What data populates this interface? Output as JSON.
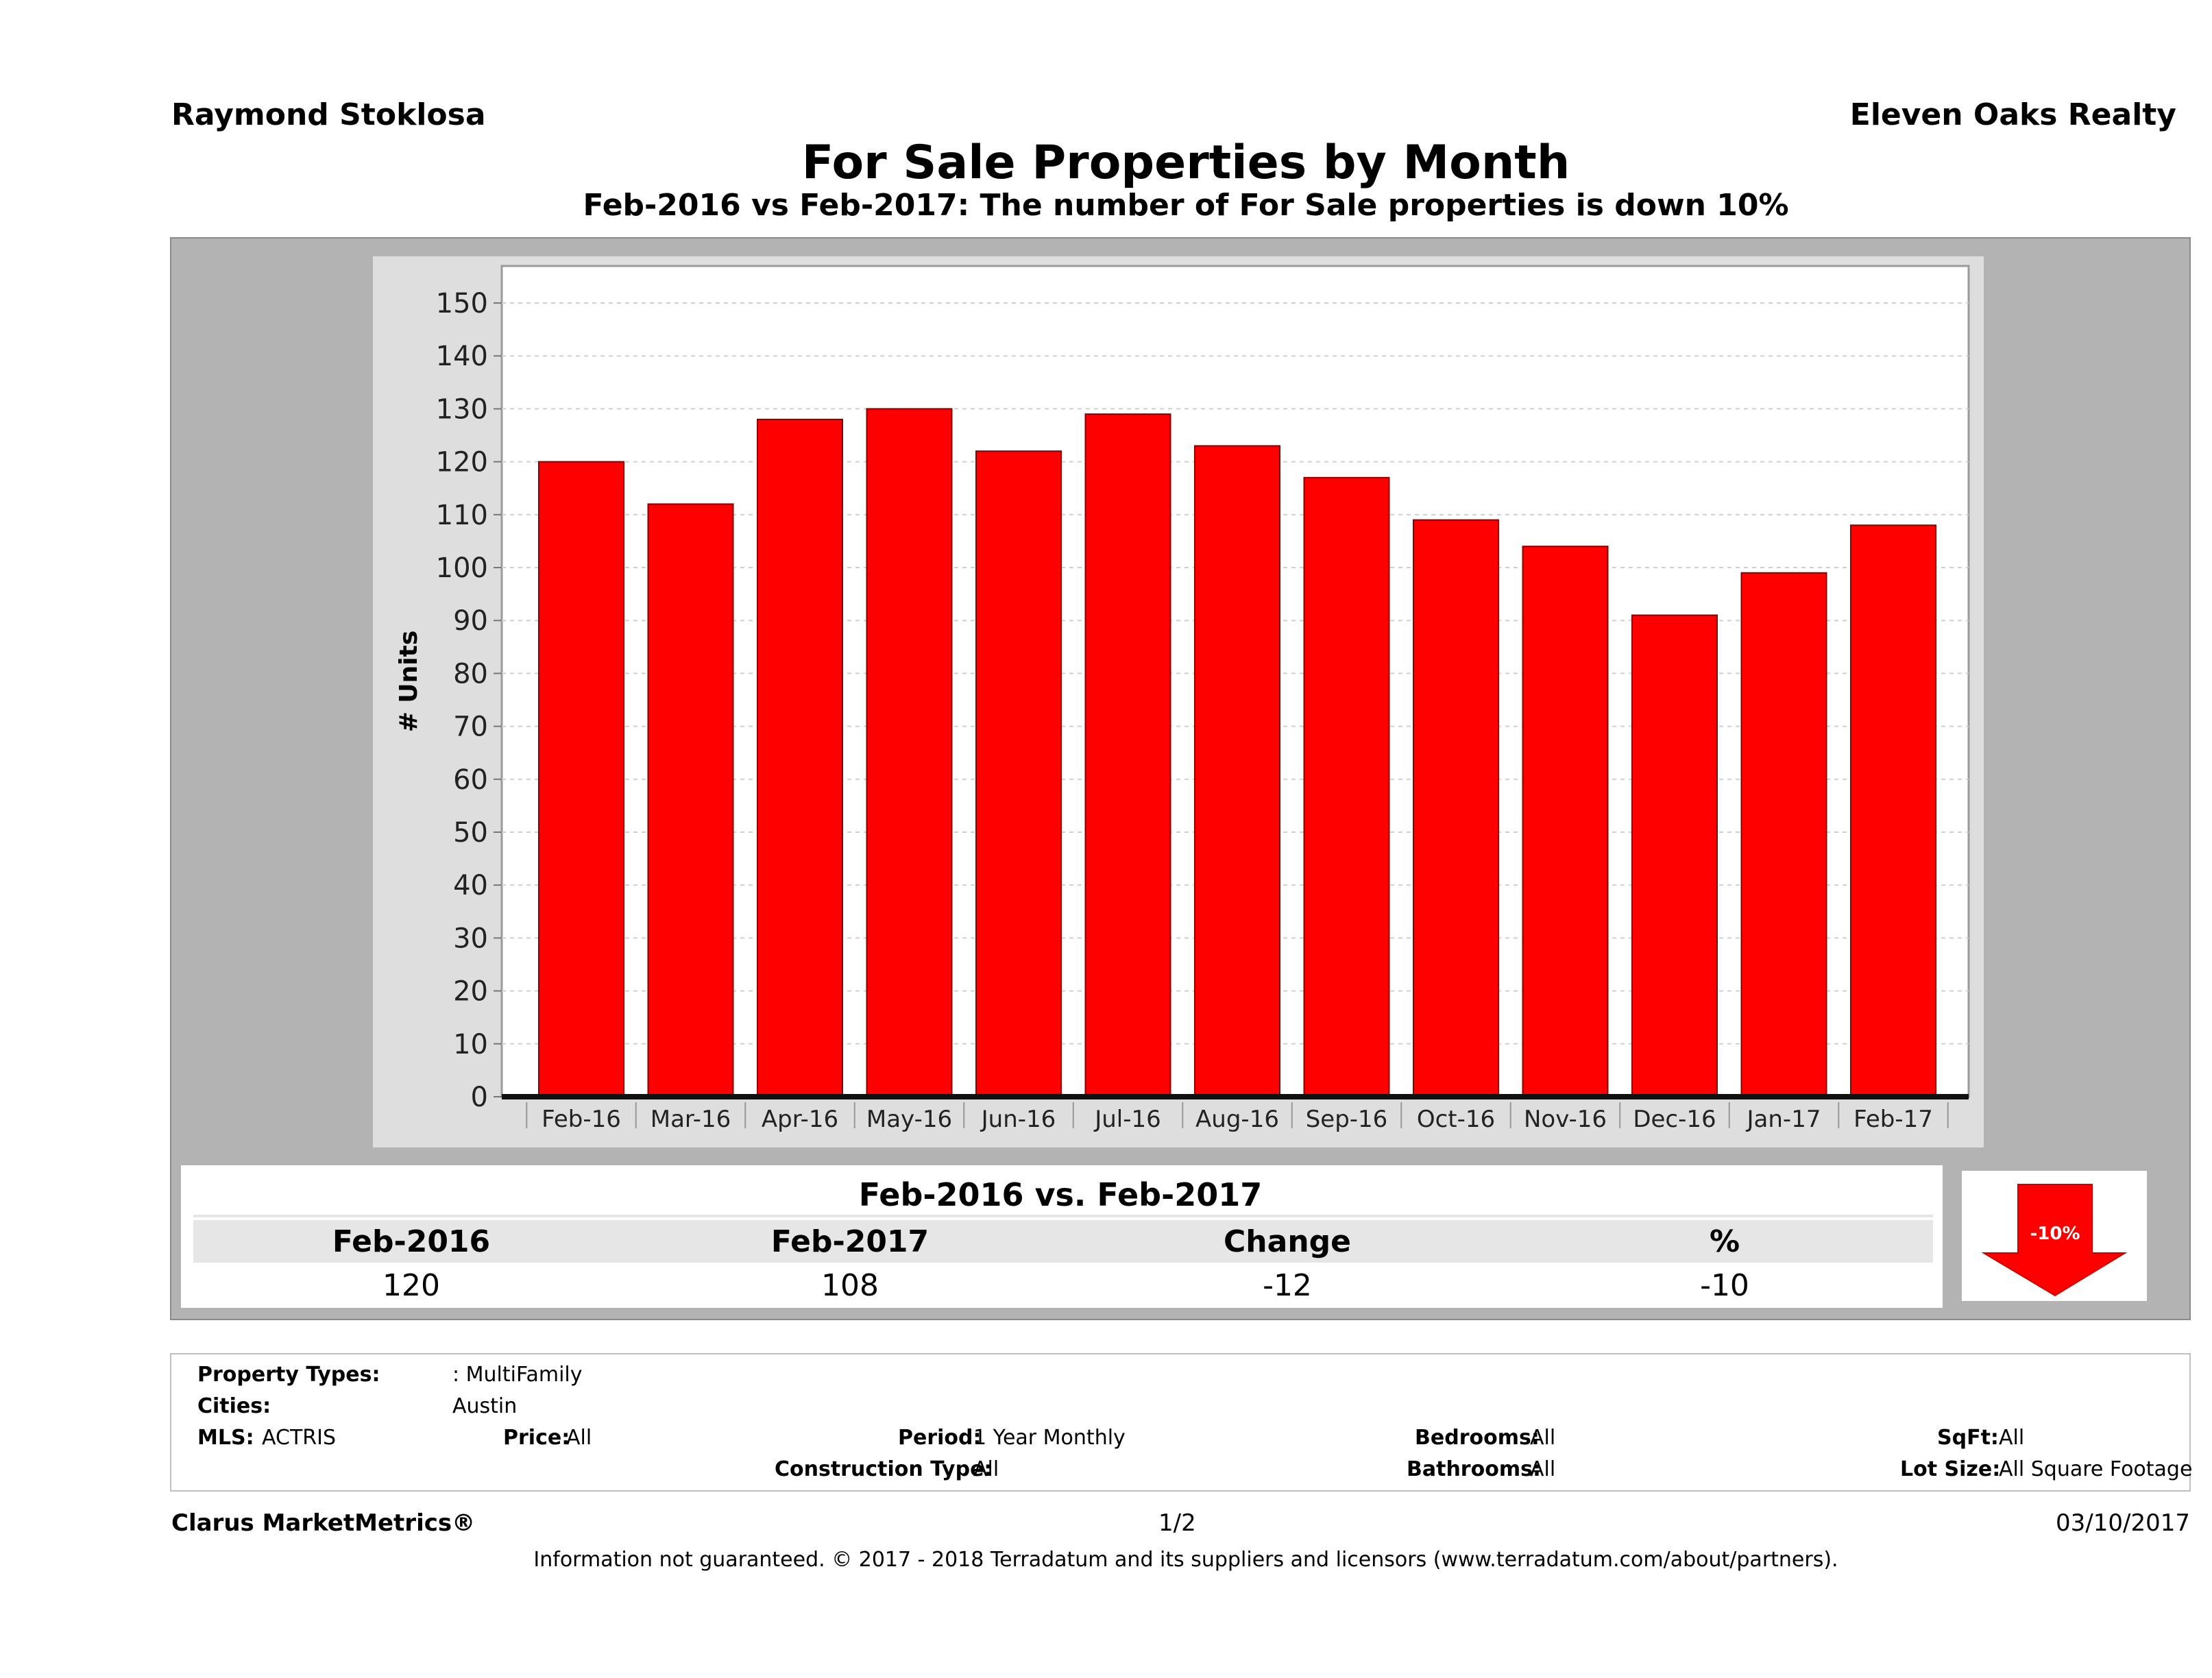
{
  "header": {
    "agent": "Raymond Stoklosa",
    "brokerage": "Eleven Oaks Realty",
    "title": "For Sale Properties by Month",
    "subtitle": "Feb-2016 vs Feb-2017: The number of For Sale  properties is down 10%"
  },
  "colors": {
    "bar": "#ff0000",
    "bar_outline": "#8b0000",
    "panel_gray": "#b3b3b3",
    "chart_bg": "#dedede",
    "badge_arrow": "#ff0000"
  },
  "chart_data": {
    "type": "bar",
    "categories": [
      "Feb-16",
      "Mar-16",
      "Apr-16",
      "May-16",
      "Jun-16",
      "Jul-16",
      "Aug-16",
      "Sep-16",
      "Oct-16",
      "Nov-16",
      "Dec-16",
      "Jan-17",
      "Feb-17"
    ],
    "values": [
      120,
      112,
      128,
      130,
      122,
      129,
      123,
      117,
      109,
      104,
      91,
      99,
      108
    ],
    "ylabel": "# Units",
    "xlabel": "",
    "ylim": [
      0,
      150
    ],
    "yticks": [
      0,
      10,
      20,
      30,
      40,
      50,
      60,
      70,
      80,
      90,
      100,
      110,
      120,
      130,
      140,
      150
    ],
    "grid": true,
    "legend": "none"
  },
  "summary": {
    "title": "Feb-2016 vs. Feb-2017",
    "headers": [
      "Feb-2016",
      "Feb-2017",
      "Change",
      "%"
    ],
    "values": [
      "120",
      "108",
      "-12",
      "-10"
    ],
    "badge": "-10%",
    "badge_icon": "down-arrow-icon"
  },
  "criteria": {
    "property_types_label": "Property Types:",
    "property_types_value": ": MultiFamily",
    "cities_label": "Cities:",
    "cities_value": "Austin",
    "mls_label": "MLS:",
    "mls_value": "ACTRIS",
    "price_label": "Price:",
    "price_value": "All",
    "period_label": "Period:",
    "period_value": "1 Year Monthly",
    "bedrooms_label": "Bedrooms:",
    "bedrooms_value": "All",
    "sqft_label": "SqFt:",
    "sqft_value": "All",
    "construction_label": "Construction Type:",
    "construction_value": "All",
    "bathrooms_label": "Bathrooms:",
    "bathrooms_value": "All",
    "lotsize_label": "Lot Size:",
    "lotsize_value": "All Square Footage"
  },
  "footer": {
    "brand": "Clarus MarketMetrics®",
    "page": "1/2",
    "date": "03/10/2017",
    "disclaimer": "Information not guaranteed. © 2017 - 2018 Terradatum and its suppliers and licensors (www.terradatum.com/about/partners)."
  }
}
